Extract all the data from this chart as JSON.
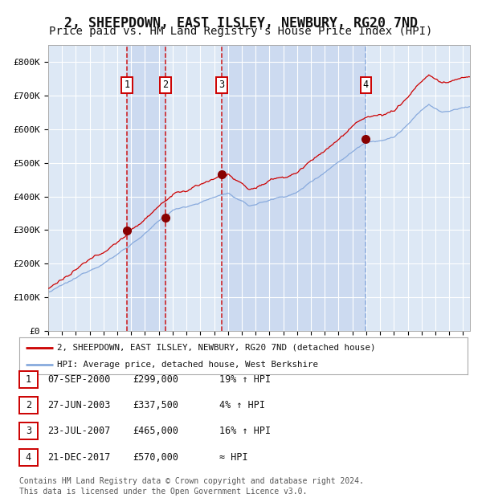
{
  "title": "2, SHEEPDOWN, EAST ILSLEY, NEWBURY, RG20 7ND",
  "subtitle": "Price paid vs. HM Land Registry's House Price Index (HPI)",
  "title_fontsize": 12,
  "subtitle_fontsize": 10,
  "background_color": "#ffffff",
  "plot_bg_color": "#dde8f5",
  "grid_color": "#ffffff",
  "ylabel_ticks": [
    "£0",
    "£100K",
    "£200K",
    "£300K",
    "£400K",
    "£500K",
    "£600K",
    "£700K",
    "£800K"
  ],
  "ytick_values": [
    0,
    100000,
    200000,
    300000,
    400000,
    500000,
    600000,
    700000,
    800000
  ],
  "ylim": [
    0,
    850000
  ],
  "xlim_start": 1995.0,
  "xlim_end": 2025.5,
  "sale_dates": [
    2000.69,
    2003.49,
    2007.56,
    2017.97
  ],
  "sale_prices": [
    299000,
    337500,
    465000,
    570000
  ],
  "sale_labels": [
    "1",
    "2",
    "3",
    "4"
  ],
  "red_line_color": "#cc0000",
  "blue_line_color": "#88aadd",
  "sale_dot_color": "#880000",
  "vline_color": "#cc0000",
  "shade_color": "#ccdaf0",
  "legend_line1": "2, SHEEPDOWN, EAST ILSLEY, NEWBURY, RG20 7ND (detached house)",
  "legend_line2": "HPI: Average price, detached house, West Berkshire",
  "table_data": [
    [
      "1",
      "07-SEP-2000",
      "£299,000",
      "19% ↑ HPI"
    ],
    [
      "2",
      "27-JUN-2003",
      "£337,500",
      "4% ↑ HPI"
    ],
    [
      "3",
      "23-JUL-2007",
      "£465,000",
      "16% ↑ HPI"
    ],
    [
      "4",
      "21-DEC-2017",
      "£570,000",
      "≈ HPI"
    ]
  ],
  "footnote": "Contains HM Land Registry data © Crown copyright and database right 2024.\nThis data is licensed under the Open Government Licence v3.0.",
  "footnote_fontsize": 7.0
}
